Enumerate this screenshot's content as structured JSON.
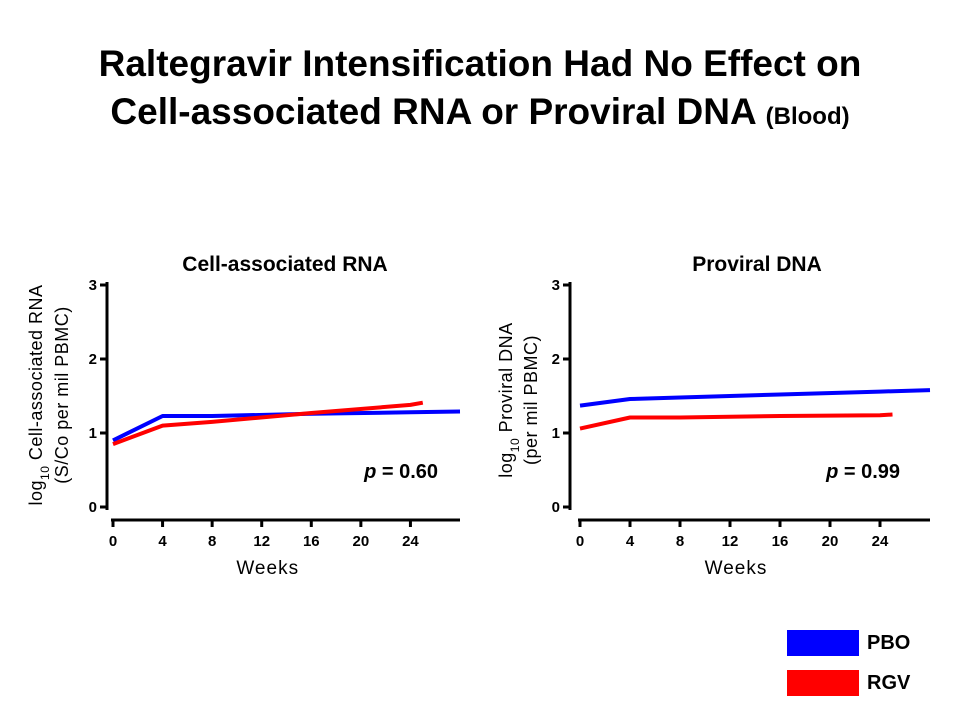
{
  "title": {
    "line1": "Raltegravir Intensification Had No Effect on",
    "line2": "Cell-associated RNA or Proviral DNA",
    "line2_small": "(Blood)"
  },
  "chart_data": [
    {
      "type": "line",
      "title": "Cell-associated RNA",
      "ylabel_prefix": "log",
      "ylabel_sub": "10",
      "ylabel_rest": "Cell-associated RNA",
      "ylabel_line2": "(S/Co per mil PBMC)",
      "xlabel": "Weeks",
      "xticks": [
        0,
        4,
        8,
        12,
        16,
        20,
        24
      ],
      "yticks": [
        0,
        1,
        2,
        3
      ],
      "xlim": [
        0,
        28
      ],
      "ylim": [
        0,
        3
      ],
      "annotation": {
        "italic": "p",
        "rest": " = 0.60"
      },
      "series": [
        {
          "name": "PBO",
          "color": "#0000ff",
          "points": [
            [
              0,
              0.9
            ],
            [
              4,
              1.23
            ],
            [
              8,
              1.23
            ],
            [
              16,
              1.26
            ],
            [
              24,
              1.28
            ],
            [
              28,
              1.29
            ]
          ]
        },
        {
          "name": "RGV",
          "color": "#ff0000",
          "points": [
            [
              0,
              0.85
            ],
            [
              4,
              1.1
            ],
            [
              8,
              1.15
            ],
            [
              16,
              1.27
            ],
            [
              24,
              1.38
            ],
            [
              25,
              1.41
            ]
          ]
        }
      ]
    },
    {
      "type": "line",
      "title": "Proviral DNA",
      "ylabel_prefix": "log",
      "ylabel_sub": "10",
      "ylabel_rest": "Proviral DNA",
      "ylabel_line2": "(per mil PBMC)",
      "xlabel": "Weeks",
      "xticks": [
        0,
        4,
        8,
        12,
        16,
        20,
        24
      ],
      "yticks": [
        0,
        1,
        2,
        3
      ],
      "xlim": [
        0,
        28
      ],
      "ylim": [
        0,
        3
      ],
      "annotation": {
        "italic": "p",
        "rest": " = 0.99"
      },
      "series": [
        {
          "name": "PBO",
          "color": "#0000ff",
          "points": [
            [
              0,
              1.37
            ],
            [
              4,
              1.46
            ],
            [
              8,
              1.48
            ],
            [
              16,
              1.52
            ],
            [
              24,
              1.56
            ],
            [
              28,
              1.58
            ]
          ]
        },
        {
          "name": "RGV",
          "color": "#ff0000",
          "points": [
            [
              0,
              1.06
            ],
            [
              4,
              1.21
            ],
            [
              8,
              1.21
            ],
            [
              16,
              1.23
            ],
            [
              24,
              1.24
            ],
            [
              25,
              1.25
            ]
          ]
        }
      ]
    }
  ],
  "legend": [
    {
      "label": "PBO",
      "color": "#0000ff"
    },
    {
      "label": "RGV",
      "color": "#ff0000"
    }
  ]
}
